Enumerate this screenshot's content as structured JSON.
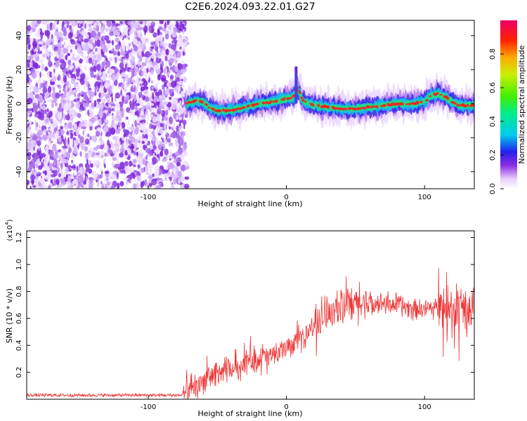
{
  "title": "C2E6.2024.093.22.01.G27",
  "colorbar": {
    "label": "Normalized spectral amplitude",
    "ticks": [
      "0.0",
      "0.2",
      "0.4",
      "0.6",
      "0.8"
    ],
    "range": [
      0,
      1
    ]
  },
  "chart_data": [
    {
      "type": "heatmap",
      "title": "",
      "xlabel": "Height of straight line (km)",
      "ylabel": "Frequency (Hz)",
      "xlim": [
        -188,
        136
      ],
      "ylim": [
        -50,
        49
      ],
      "xticks": [
        "-100",
        "0",
        "100"
      ],
      "yticks": [
        "40",
        "20",
        "0",
        "-20",
        "-40"
      ],
      "noise_region_x": [
        -188,
        -72
      ],
      "ridge": {
        "x": [
          -72,
          -65,
          -60,
          -55,
          -50,
          -40,
          -30,
          -20,
          -10,
          0,
          5,
          8,
          12,
          20,
          30,
          40,
          50,
          60,
          70,
          80,
          90,
          100,
          105,
          110,
          115,
          120,
          125,
          130,
          136
        ],
        "y": [
          0,
          2,
          1,
          -3,
          -4,
          -4,
          -2,
          0,
          1,
          3,
          4,
          9,
          2,
          -1,
          -2,
          -3,
          -3,
          -2,
          -1,
          0,
          0,
          1,
          5,
          6,
          4,
          1,
          -1,
          -1,
          -1
        ]
      },
      "spike": {
        "x": 7,
        "y_range": [
          0,
          22
        ]
      }
    },
    {
      "type": "line",
      "title": "",
      "xlabel": "Height of straight line (km)",
      "ylabel": "SNR (10 * v/v)",
      "y_multiplier": "(x10",
      "y_multiplier_exp": "4",
      "y_multiplier_close": ")",
      "xlim": [
        -188,
        136
      ],
      "ylim": [
        0.0,
        1.25
      ],
      "xticks": [
        "-100",
        "0",
        "100"
      ],
      "yticks": [
        "1.2",
        "1.0",
        "0.8",
        "0.6",
        "0.4",
        "0.2"
      ],
      "series": [
        {
          "color": "#ee3333",
          "x": [
            -188,
            -150,
            -100,
            -75,
            -70,
            -60,
            -50,
            -40,
            -30,
            -20,
            -10,
            0,
            10,
            20,
            30,
            40,
            50,
            60,
            70,
            80,
            90,
            100,
            110,
            120,
            130,
            136
          ],
          "y": [
            0.03,
            0.03,
            0.03,
            0.03,
            0.06,
            0.14,
            0.2,
            0.22,
            0.28,
            0.3,
            0.33,
            0.38,
            0.45,
            0.55,
            0.65,
            0.68,
            0.7,
            0.72,
            0.72,
            0.7,
            0.68,
            0.67,
            0.68,
            0.68,
            0.62,
            0.65
          ]
        }
      ]
    }
  ]
}
